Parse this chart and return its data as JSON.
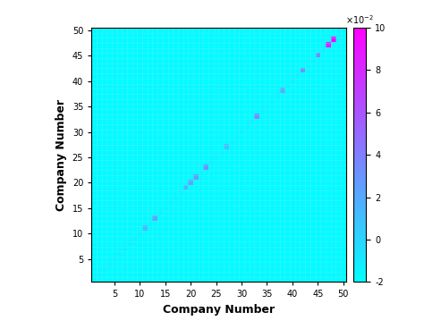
{
  "n": 50,
  "xlabel": "Company Number",
  "ylabel": "Company Number",
  "vmin": -0.02,
  "vmax": 0.1,
  "background_value": -0.018,
  "cmap": "cool",
  "figsize": [
    4.74,
    3.68
  ],
  "dpi": 100,
  "xticks": [
    5,
    10,
    15,
    20,
    25,
    30,
    35,
    40,
    45,
    50
  ],
  "yticks": [
    5,
    10,
    15,
    20,
    25,
    30,
    35,
    40,
    45,
    50
  ],
  "grid_color": "#55EEFF",
  "grid_linewidth": 0.4,
  "colorbar_ticks": [
    -0.02,
    0.0,
    0.02,
    0.04,
    0.06,
    0.08,
    0.1
  ],
  "colorbar_ticklabels": [
    "-2",
    "0",
    "2",
    "4",
    "6",
    "8",
    "10"
  ],
  "diag_indices": [
    10,
    12,
    18,
    19,
    20,
    22,
    26,
    32,
    37,
    41,
    44,
    46,
    47
  ],
  "diag_values": [
    0.012,
    0.022,
    0.016,
    0.023,
    0.025,
    0.03,
    0.01,
    0.032,
    0.02,
    0.03,
    0.035,
    0.085,
    0.1
  ]
}
